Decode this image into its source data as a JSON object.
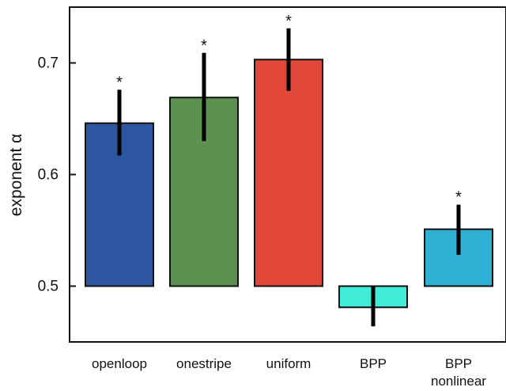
{
  "chart_data": {
    "type": "bar",
    "ylabel": "exponent α",
    "xlabel": "",
    "ylim": [
      0.45,
      0.75
    ],
    "yticks": [
      0.5,
      0.6,
      0.7
    ],
    "ytick_labels": [
      "0.5",
      "0.6",
      "0.7"
    ],
    "baseline": 0.5,
    "categories": [
      {
        "label": "openloop",
        "label_line2": ""
      },
      {
        "label": "onestripe",
        "label_line2": ""
      },
      {
        "label": "uniform",
        "label_line2": ""
      },
      {
        "label": "BPP",
        "label_line2": ""
      },
      {
        "label": "BPP",
        "label_line2": "nonlinear"
      }
    ],
    "values": [
      0.646,
      0.669,
      0.703,
      0.481,
      0.551
    ],
    "error_low": [
      0.617,
      0.63,
      0.675,
      0.464,
      0.528
    ],
    "error_high": [
      0.676,
      0.709,
      0.731,
      0.5,
      0.573
    ],
    "significance": [
      "*",
      "*",
      "*",
      "",
      "*"
    ],
    "colors": [
      "#2c56a0",
      "#5c9151",
      "#e2483a",
      "#40ecd6",
      "#2fb0d4"
    ],
    "grid": false,
    "legend": "none"
  }
}
